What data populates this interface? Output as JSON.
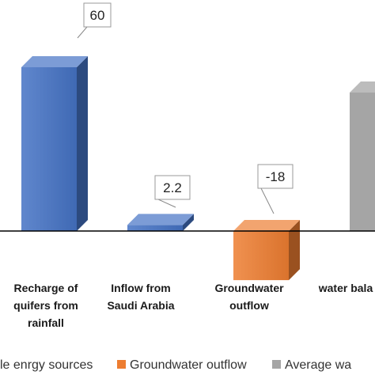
{
  "chart_data": {
    "type": "bar",
    "categories": [
      "Recharge of\nquifers from\nrainfall",
      "Inflow from\nSaudi Arabia",
      "Groundwater\noutflow",
      "water bala"
    ],
    "values": [
      60,
      2.2,
      -18,
      null
    ],
    "data_labels": [
      "60",
      "2.2",
      "-18",
      ""
    ],
    "series": [
      {
        "name": "le enrgy sources",
        "color": "#4472c4"
      },
      {
        "name": "Groundwater outflow",
        "color": "#ed7d31"
      },
      {
        "name": "Average wa",
        "color": "#a5a5a5"
      }
    ],
    "bar_colors": [
      "#4472c4",
      "#4472c4",
      "#ed7d31",
      "#a5a5a5"
    ],
    "three_d": true,
    "legend_position": "bottom",
    "title": "",
    "xlabel": "",
    "ylabel": ""
  }
}
